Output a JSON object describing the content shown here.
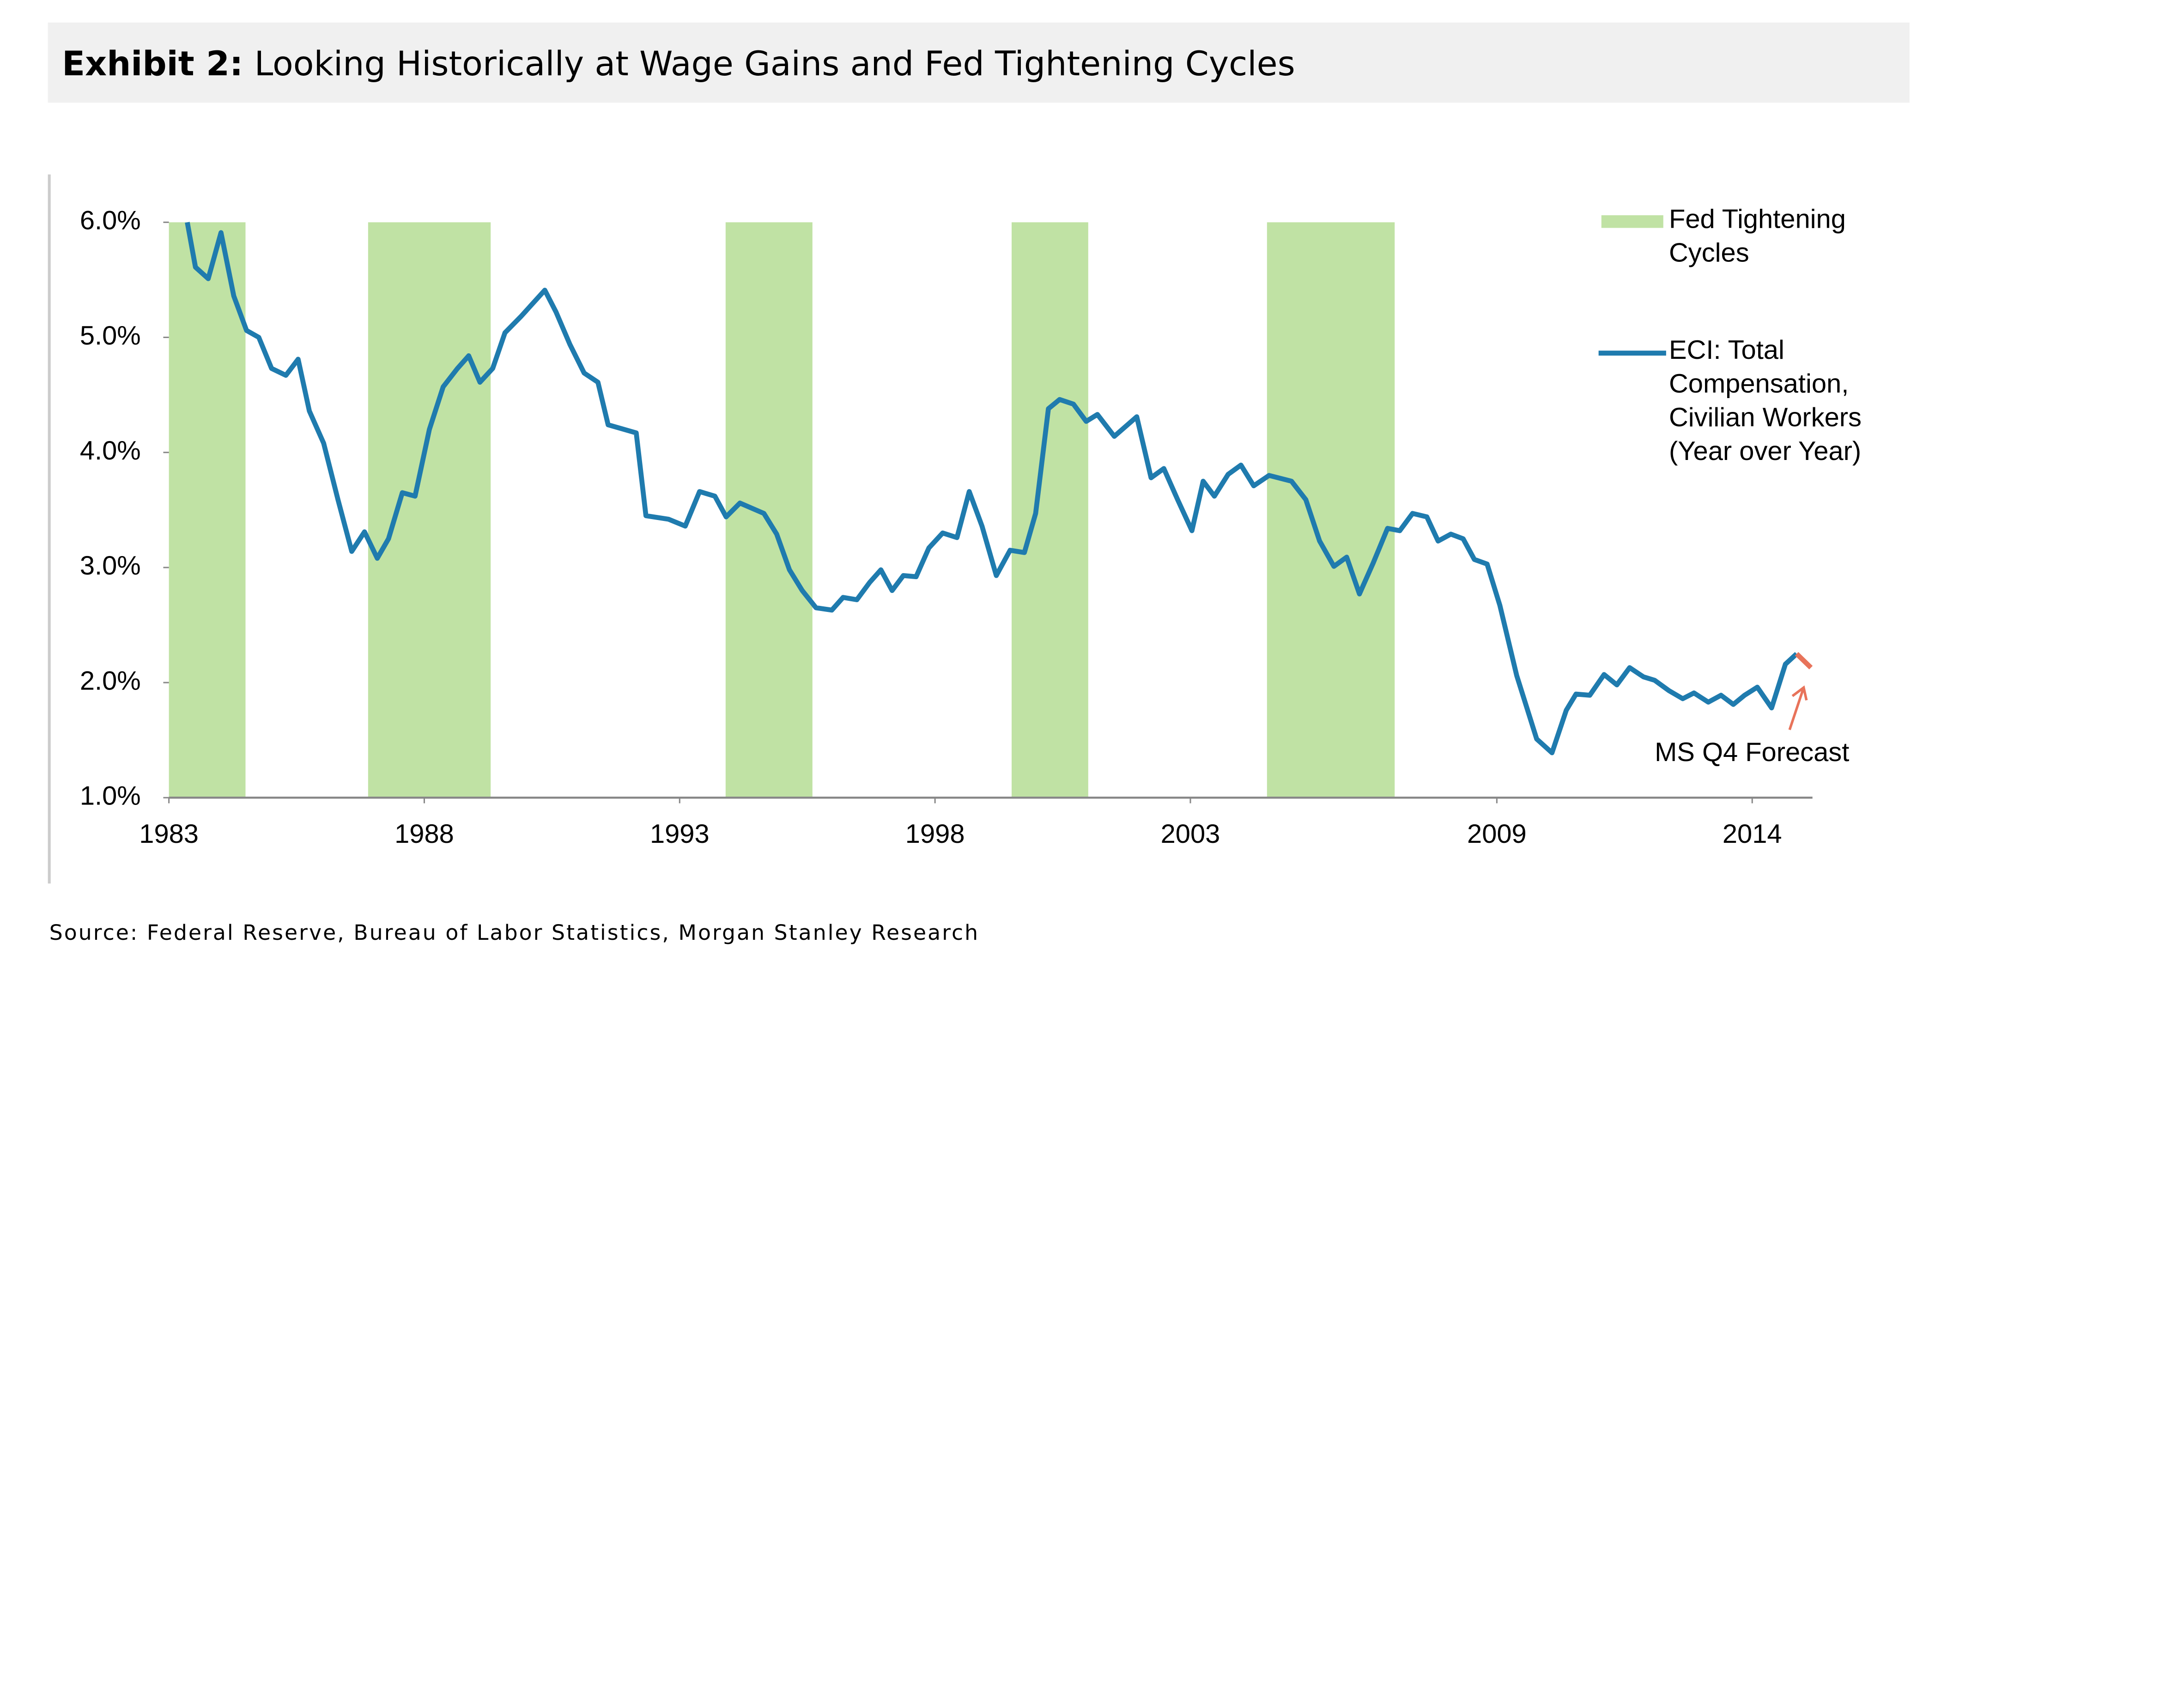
{
  "chart_data": {
    "type": "line",
    "title_label": "Exhibit 2:",
    "title": "Looking Historically at Wage Gains and Fed Tightening Cycles",
    "source": "Source: Federal Reserve, Bureau of Labor Statistics, Morgan Stanley Research",
    "xlim": [
      1983,
      2015.18
    ],
    "xticks": [
      1983,
      1988,
      1993,
      1998,
      2003,
      2009,
      2014
    ],
    "ylim": [
      1,
      6
    ],
    "yticks": [
      {
        "value": 6,
        "label": "6.0%"
      },
      {
        "value": 5,
        "label": "5.0%"
      },
      {
        "value": 4,
        "label": "4.0%"
      },
      {
        "value": 3,
        "label": "3.0%"
      },
      {
        "value": 2,
        "label": "2.0%"
      },
      {
        "value": 1,
        "label": "1.0%"
      }
    ],
    "grid": false,
    "bands": {
      "name": "Fed Tightening Cycles",
      "color": "#c0e2a4",
      "ranges": [
        [
          1983,
          1984.5
        ],
        [
          1986.9,
          1989.3
        ],
        [
          1993.9,
          1995.6
        ],
        [
          1999.5,
          2001.0
        ],
        [
          2004.5,
          2007.0
        ]
      ]
    },
    "series": [
      {
        "name": "ECI: Total Compensation, Civilian Workers (Year over Year)",
        "color": "#1f7bae",
        "x": [
          1983.36,
          1983.52,
          1983.77,
          1984.02,
          1984.27,
          1984.52,
          1984.76,
          1985.01,
          1985.29,
          1985.53,
          1985.75,
          1986.03,
          1986.31,
          1986.58,
          1986.83,
          1987.08,
          1987.3,
          1987.57,
          1987.82,
          1988.1,
          1988.37,
          1988.65,
          1988.87,
          1989.09,
          1989.34,
          1989.58,
          1989.89,
          1990.36,
          1990.58,
          1990.85,
          1991.13,
          1991.4,
          1991.6,
          1992.15,
          1992.34,
          1992.78,
          1993.11,
          1993.39,
          1993.69,
          1993.91,
          1994.18,
          1994.65,
          1994.9,
          1995.15,
          1995.4,
          1995.67,
          1995.98,
          1996.2,
          1996.47,
          1996.72,
          1996.94,
          1997.16,
          1997.38,
          1997.63,
          1997.88,
          1998.15,
          1998.43,
          1998.67,
          1998.92,
          1999.2,
          1999.47,
          1999.75,
          1999.97,
          2000.22,
          2000.44,
          2000.71,
          2000.96,
          2001.18,
          2001.51,
          2001.95,
          2002.23,
          2002.48,
          2002.75,
          2003.03,
          2003.25,
          2003.47,
          2003.74,
          2003.99,
          2004.24,
          2004.54,
          2004.98,
          2005.26,
          2005.53,
          2005.81,
          2006.06,
          2006.31,
          2006.58,
          2006.86,
          2007.1,
          2007.35,
          2007.63,
          2007.85,
          2008.1,
          2008.34,
          2008.56,
          2008.81,
          2009.06,
          2009.39,
          2009.78,
          2010.08,
          2010.36,
          2010.55,
          2010.82,
          2011.1,
          2011.35,
          2011.6,
          2011.87,
          2012.09,
          2012.37,
          2012.64,
          2012.86,
          2013.14,
          2013.39,
          2013.63,
          2013.85,
          2014.1,
          2014.38,
          2014.65,
          2014.87
        ],
        "values": [
          6.0,
          5.61,
          5.51,
          5.91,
          5.36,
          5.06,
          5.0,
          4.73,
          4.67,
          4.81,
          4.36,
          4.08,
          3.59,
          3.14,
          3.31,
          3.08,
          3.25,
          3.65,
          3.62,
          4.2,
          4.57,
          4.73,
          4.84,
          4.61,
          4.73,
          5.04,
          5.18,
          5.41,
          5.22,
          4.94,
          4.69,
          4.61,
          4.24,
          4.17,
          3.45,
          3.42,
          3.36,
          3.66,
          3.62,
          3.44,
          3.56,
          3.47,
          3.29,
          2.98,
          2.8,
          2.65,
          2.63,
          2.74,
          2.72,
          2.87,
          2.98,
          2.8,
          2.93,
          2.92,
          3.17,
          3.3,
          3.26,
          3.66,
          3.36,
          2.93,
          3.15,
          3.13,
          3.47,
          4.38,
          4.46,
          4.42,
          4.27,
          4.33,
          4.14,
          4.31,
          3.78,
          3.86,
          3.59,
          3.32,
          3.75,
          3.62,
          3.81,
          3.89,
          3.71,
          3.8,
          3.75,
          3.59,
          3.23,
          3.01,
          3.09,
          2.77,
          3.04,
          3.34,
          3.32,
          3.47,
          3.44,
          3.23,
          3.29,
          3.25,
          3.07,
          3.03,
          2.67,
          2.06,
          1.51,
          1.39,
          1.76,
          1.9,
          1.89,
          2.07,
          1.98,
          2.13,
          2.05,
          2.02,
          1.93,
          1.86,
          1.91,
          1.83,
          1.89,
          1.81,
          1.89,
          1.96,
          1.78,
          2.16,
          2.25
        ]
      },
      {
        "name": "MS Q4 Forecast",
        "color": "#e8735a",
        "x": [
          2014.87,
          2015.15
        ],
        "values": [
          2.25,
          2.13
        ]
      }
    ]
  }
}
